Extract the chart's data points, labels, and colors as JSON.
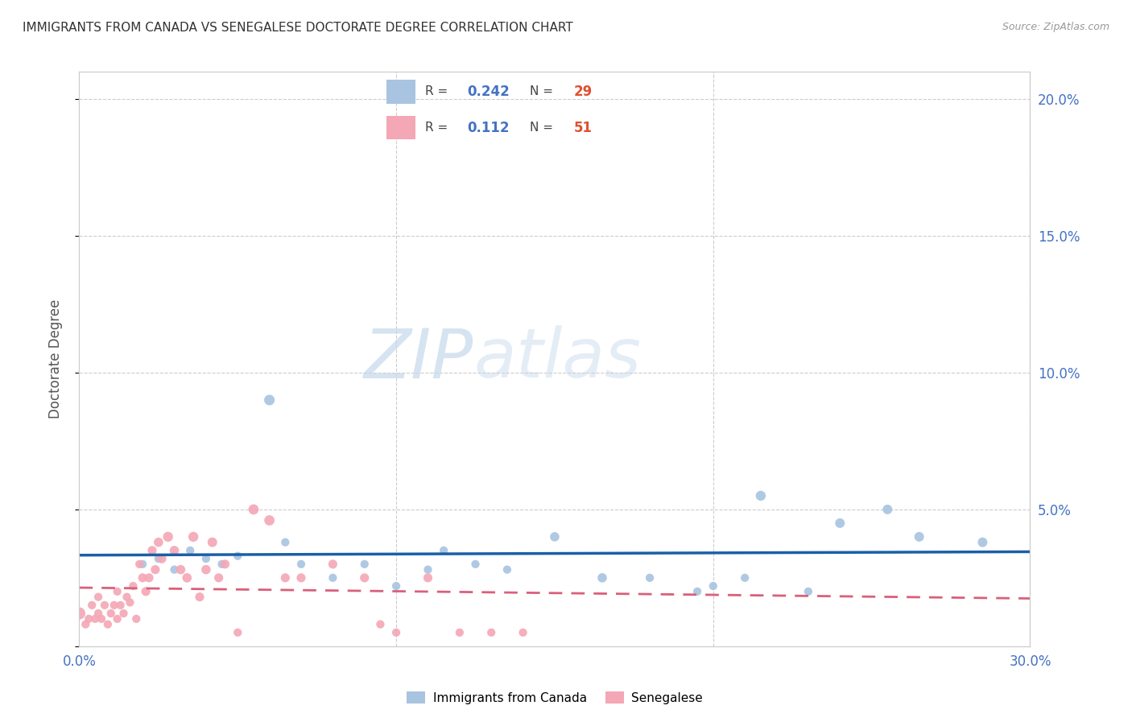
{
  "title": "IMMIGRANTS FROM CANADA VS SENEGALESE DOCTORATE DEGREE CORRELATION CHART",
  "source": "Source: ZipAtlas.com",
  "ylabel": "Doctorate Degree",
  "xlim": [
    0.0,
    0.3
  ],
  "ylim": [
    0.0,
    0.21
  ],
  "legend_R_canada": "0.242",
  "legend_N_canada": "29",
  "legend_R_senegal": "0.112",
  "legend_N_senegal": "51",
  "canada_color": "#a8c4e0",
  "senegal_color": "#f4a7b5",
  "canada_line_color": "#1a5fa8",
  "senegal_line_color": "#d9607a",
  "watermark_zip": "ZIP",
  "watermark_atlas": "atlas",
  "canada_x": [
    0.02,
    0.025,
    0.03,
    0.035,
    0.04,
    0.045,
    0.05,
    0.06,
    0.065,
    0.07,
    0.08,
    0.09,
    0.1,
    0.11,
    0.115,
    0.125,
    0.135,
    0.15,
    0.165,
    0.18,
    0.195,
    0.2,
    0.21,
    0.215,
    0.23,
    0.24,
    0.255,
    0.265,
    0.285
  ],
  "canada_y": [
    0.03,
    0.032,
    0.028,
    0.035,
    0.032,
    0.03,
    0.033,
    0.09,
    0.038,
    0.03,
    0.025,
    0.03,
    0.022,
    0.028,
    0.035,
    0.03,
    0.028,
    0.04,
    0.025,
    0.025,
    0.02,
    0.022,
    0.025,
    0.055,
    0.02,
    0.045,
    0.05,
    0.04,
    0.038
  ],
  "senegal_x": [
    0.0,
    0.002,
    0.003,
    0.004,
    0.005,
    0.006,
    0.006,
    0.007,
    0.008,
    0.009,
    0.01,
    0.011,
    0.012,
    0.012,
    0.013,
    0.014,
    0.015,
    0.016,
    0.017,
    0.018,
    0.019,
    0.02,
    0.021,
    0.022,
    0.023,
    0.024,
    0.025,
    0.026,
    0.028,
    0.03,
    0.032,
    0.034,
    0.036,
    0.038,
    0.04,
    0.042,
    0.044,
    0.046,
    0.05,
    0.055,
    0.06,
    0.065,
    0.07,
    0.08,
    0.09,
    0.095,
    0.1,
    0.11,
    0.12,
    0.13,
    0.14
  ],
  "senegal_y": [
    0.012,
    0.008,
    0.01,
    0.015,
    0.01,
    0.012,
    0.018,
    0.01,
    0.015,
    0.008,
    0.012,
    0.015,
    0.01,
    0.02,
    0.015,
    0.012,
    0.018,
    0.016,
    0.022,
    0.01,
    0.03,
    0.025,
    0.02,
    0.025,
    0.035,
    0.028,
    0.038,
    0.032,
    0.04,
    0.035,
    0.028,
    0.025,
    0.04,
    0.018,
    0.028,
    0.038,
    0.025,
    0.03,
    0.005,
    0.05,
    0.046,
    0.025,
    0.025,
    0.03,
    0.025,
    0.008,
    0.005,
    0.025,
    0.005,
    0.005,
    0.005
  ],
  "canada_sizes": [
    55,
    55,
    55,
    55,
    55,
    55,
    55,
    90,
    55,
    55,
    55,
    55,
    55,
    55,
    55,
    55,
    55,
    70,
    70,
    55,
    55,
    55,
    55,
    80,
    55,
    75,
    75,
    75,
    75
  ],
  "senegal_sizes": [
    120,
    55,
    55,
    55,
    55,
    55,
    55,
    55,
    55,
    55,
    55,
    55,
    55,
    55,
    55,
    55,
    55,
    55,
    55,
    55,
    55,
    65,
    65,
    65,
    65,
    65,
    70,
    70,
    80,
    70,
    70,
    70,
    80,
    65,
    70,
    75,
    65,
    65,
    55,
    85,
    85,
    65,
    65,
    65,
    65,
    55,
    55,
    65,
    55,
    55,
    55
  ]
}
